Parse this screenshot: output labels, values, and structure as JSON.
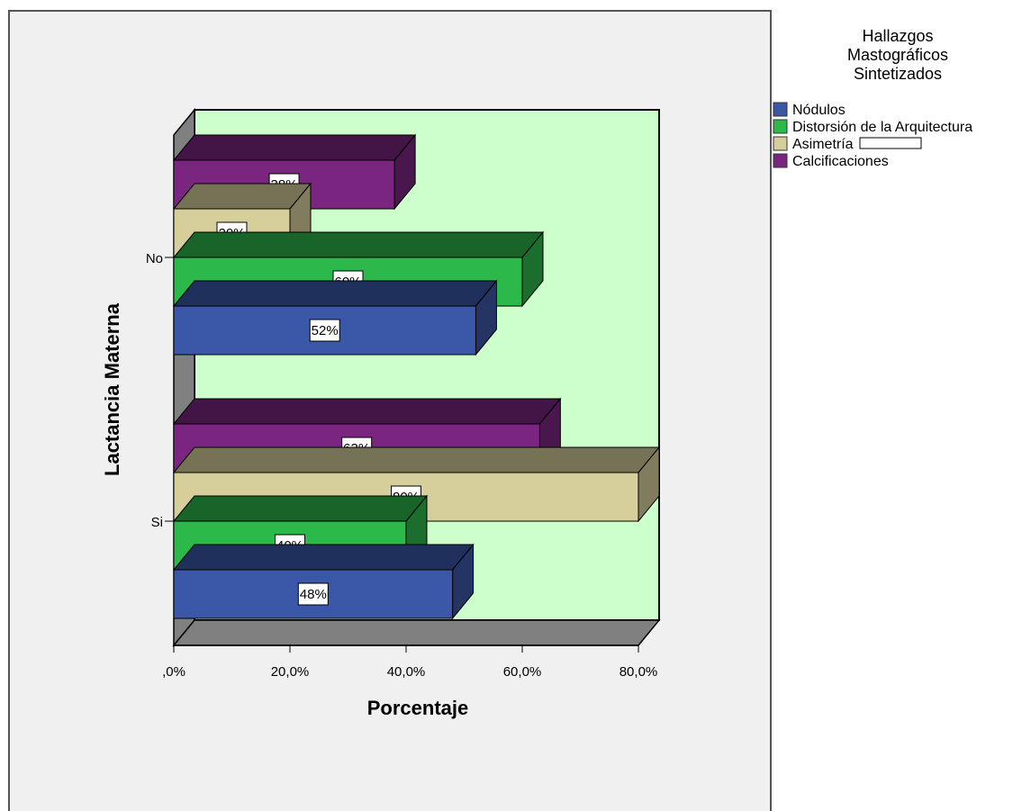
{
  "chart_data": {
    "type": "bar",
    "orientation": "horizontal",
    "three_d": true,
    "categories": [
      "No",
      "Si"
    ],
    "xlabel": "Porcentaje",
    "ylabel": "Lactancia Materna",
    "xlim": [
      0,
      80
    ],
    "xticks": [
      ",0%",
      "20,0%",
      "40,0%",
      "60,0%",
      "80,0%"
    ],
    "legend": {
      "title_lines": [
        "Hallazgos",
        "Mastográficos",
        "Sintetizados"
      ],
      "placement": "right"
    },
    "series": [
      {
        "name": "Nódulos",
        "color": "#3b57a8",
        "values": [
          52,
          48
        ],
        "labels": [
          "52%",
          "48%"
        ]
      },
      {
        "name": "Distorsión de la Arquitectura",
        "color": "#2db84b",
        "values": [
          60,
          40
        ],
        "labels": [
          "60%",
          "40%"
        ]
      },
      {
        "name": "Asimetría",
        "color": "#d6cf9b",
        "values": [
          20,
          80
        ],
        "labels": [
          "20%",
          "80%"
        ]
      },
      {
        "name": "Calcificaciones",
        "color": "#7a2681",
        "values": [
          38,
          63
        ],
        "labels": [
          "38%",
          "63%"
        ]
      }
    ],
    "plot_background": "#ccffcc",
    "frame_color": "#808080"
  }
}
